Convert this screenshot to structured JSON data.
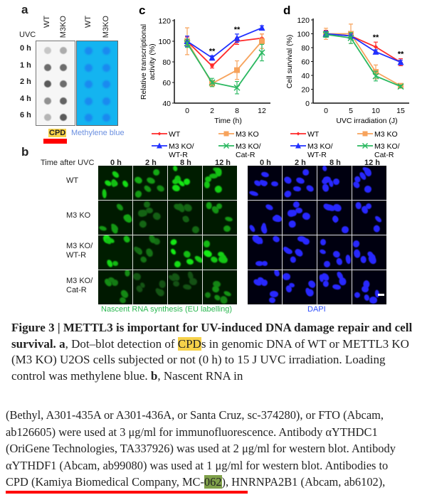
{
  "panel_a": {
    "label": "a",
    "uvc_label": "UVC",
    "columns": [
      "WT",
      "M3KO",
      "WT",
      "M3KO"
    ],
    "rows": [
      "0 h",
      "1 h",
      "2 h",
      "4 h",
      "6 h"
    ],
    "cpd_label": "CPD",
    "methylene_label": "Methylene blue",
    "colors": {
      "membrane_blue": "#14b4f0",
      "dot_blue": "#1a8af0",
      "highlight": "#f7d24a",
      "underline": "#ff0000"
    },
    "cpd_dot_intensity": [
      [
        0.2,
        0.35
      ],
      [
        0.7,
        0.7
      ],
      [
        0.8,
        0.7
      ],
      [
        0.5,
        0.75
      ],
      [
        0.3,
        0.8
      ]
    ]
  },
  "panel_b": {
    "label": "b",
    "time_header": "Time after UVC",
    "times": [
      "0 h",
      "2 h",
      "8 h",
      "12 h"
    ],
    "rows": [
      [
        "WT"
      ],
      [
        "M3 KO"
      ],
      [
        "M3 KO/",
        "WT-R"
      ],
      [
        "M3 KO/",
        "Cat-R"
      ]
    ],
    "eu_caption": "Nascent RNA synthesis (EU labelling)",
    "dapi_caption": "DAPI",
    "eu_intensity": [
      [
        0.9,
        0.6,
        0.9,
        0.85
      ],
      [
        0.6,
        0.25,
        0.25,
        0.6
      ],
      [
        0.9,
        0.35,
        0.95,
        0.95
      ],
      [
        0.45,
        0.15,
        0.15,
        0.5
      ]
    ],
    "colors": {
      "eu": "#22dd22",
      "dapi": "#2020ff"
    }
  },
  "chart_data": [
    {
      "panel": "c",
      "type": "line",
      "xlabel": "Time (h)",
      "ylabel": "Relative transcriptional activity (%)",
      "categories": [
        "0",
        "2",
        "8",
        "12"
      ],
      "ylim": [
        40,
        120
      ],
      "yticks": [
        40,
        60,
        80,
        100,
        120
      ],
      "annotations": [
        {
          "x": "2",
          "text": "**"
        },
        {
          "x": "8",
          "text": "**"
        }
      ],
      "series": [
        {
          "name": "WT",
          "color": "#ff2a2a",
          "marker": "diamond",
          "values": [
            100,
            76,
            100,
            103
          ],
          "err": [
            4,
            2,
            3,
            4
          ]
        },
        {
          "name": "M3 KO",
          "color": "#f7a35c",
          "marker": "square",
          "values": [
            100,
            59,
            72,
            100
          ],
          "err": [
            13,
            3,
            9,
            7
          ]
        },
        {
          "name": "M3 KO/ WT-R",
          "color": "#2030ff",
          "marker": "triangle",
          "values": [
            100,
            84,
            103,
            113
          ],
          "err": [
            5,
            2,
            4,
            2
          ]
        },
        {
          "name": "M3 KO/ Cat-R",
          "color": "#2ab860",
          "marker": "x",
          "values": [
            98,
            60,
            55,
            89
          ],
          "err": [
            4,
            4,
            6,
            8
          ]
        }
      ],
      "legend": "bottom"
    },
    {
      "panel": "d",
      "type": "line",
      "xlabel": "UVC irradiation (J)",
      "ylabel": "Cell survival (%)",
      "categories": [
        "0",
        "5",
        "10",
        "15"
      ],
      "ylim": [
        0,
        120
      ],
      "yticks": [
        0,
        20,
        40,
        60,
        80,
        100,
        120
      ],
      "annotations": [
        {
          "x": "10",
          "text": "**"
        },
        {
          "x": "15",
          "text": "**"
        }
      ],
      "series": [
        {
          "name": "WT",
          "color": "#ff2a2a",
          "marker": "diamond",
          "values": [
            100,
            97,
            81,
            59
          ],
          "err": [
            5,
            4,
            7,
            5
          ]
        },
        {
          "name": "M3 KO",
          "color": "#f7a35c",
          "marker": "square",
          "values": [
            100,
            100,
            45,
            25
          ],
          "err": [
            8,
            14,
            10,
            2
          ]
        },
        {
          "name": "M3 KO/ WT-R",
          "color": "#2030ff",
          "marker": "triangle",
          "values": [
            100,
            97,
            74,
            59
          ],
          "err": [
            4,
            3,
            3,
            3
          ]
        },
        {
          "name": "M3 KO/ Cat-R",
          "color": "#2ab860",
          "marker": "x",
          "values": [
            99,
            94,
            39,
            24
          ],
          "err": [
            4,
            8,
            7,
            2
          ]
        }
      ],
      "legend": "bottom"
    }
  ],
  "caption": {
    "fig": "Figure 3 | METTL3 is important for UV-induced DNA damage repair and cell survival.",
    "a_label": "a",
    "a_pre": ", Dot–blot detection of ",
    "a_hl": "CPD",
    "a_post": "s in genomic DNA of WT or METTL3 KO (M3 KO) U2OS cells subjected or not (0 h) to 15 J UVC irradiation. Loading control was methylene blue. ",
    "b_label": "b",
    "b_post": ", Nascent RNA in"
  },
  "methods": {
    "lines": [
      "(Bethyl, A301-435A or A301-436A, or Santa Cruz, sc-374280), or FTO (Abcam,",
      "ab126605) were used at 3 μg/ml for immunofluorescence. Antibody αYTHDC1",
      "(OriGene Technologies, TA337926) was used at 2 μg/ml for western blot. Antibody",
      "αYTHDF1 (Abcam, ab99080) was used at 1 μg/ml for western blot. Antibodies to"
    ],
    "last_pre": "CPD (Kamiya Biomedical Company, MC-",
    "last_hl": "062",
    "last_post": "), HNRNPA2B1 (Abcam, ab6102),"
  }
}
